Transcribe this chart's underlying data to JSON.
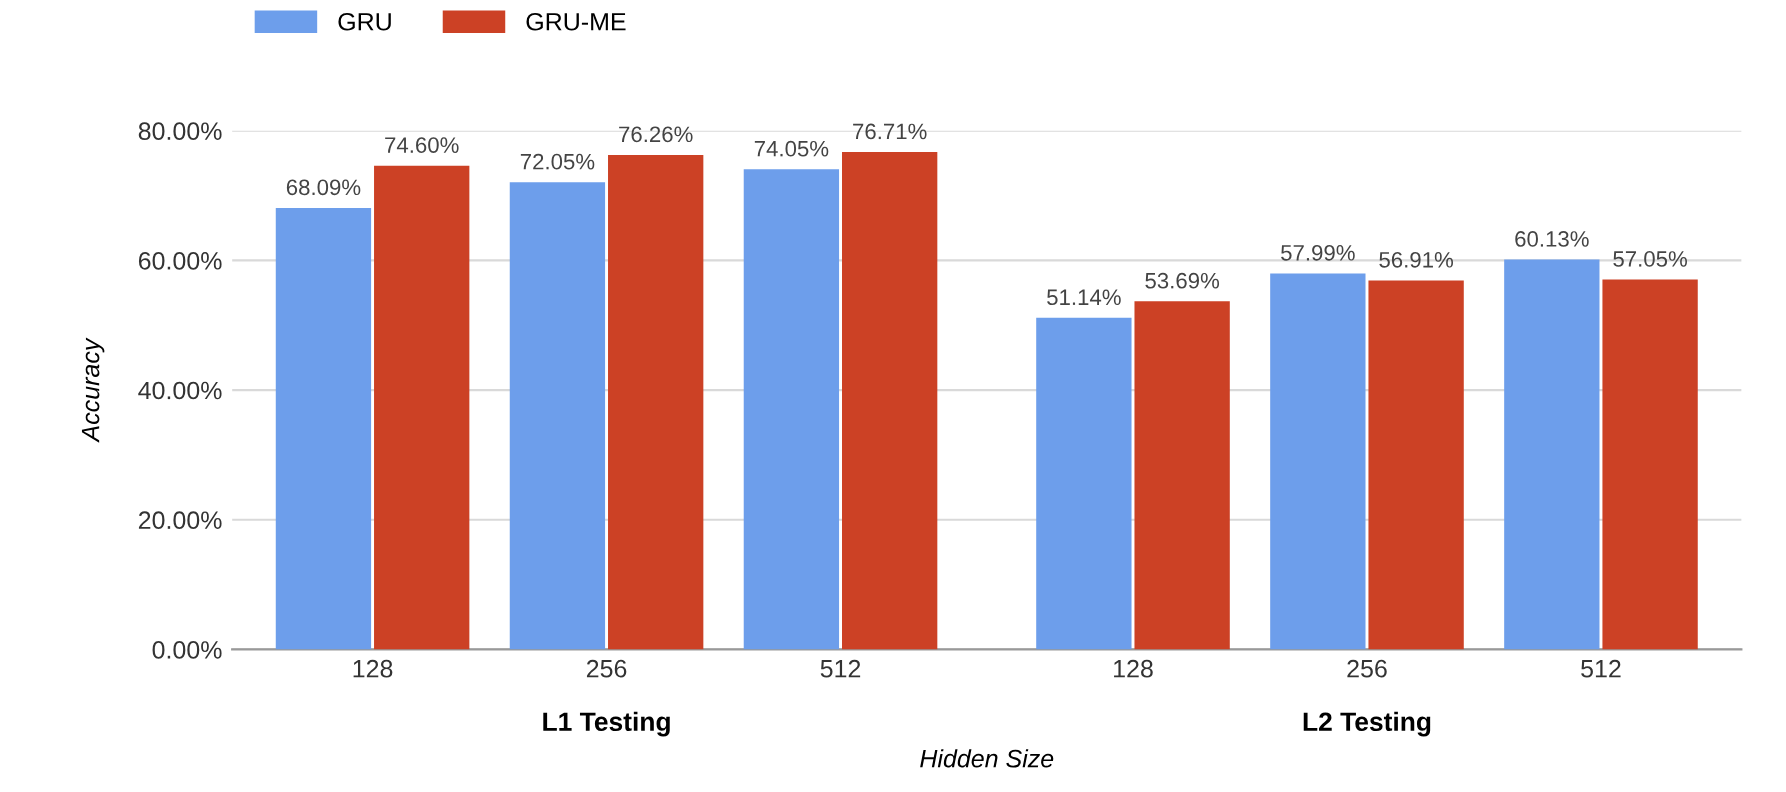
{
  "chart_data": {
    "type": "bar",
    "xlabel": "Hidden Size",
    "ylabel": "Accuracy",
    "categories": [
      "128",
      "256",
      "512",
      "128",
      "256",
      "512"
    ],
    "annotations": [
      "L1 Testing",
      "L2 Testing"
    ],
    "series": [
      {
        "name": "GRU",
        "color": "#6d9eeb",
        "values": [
          68.09,
          72.05,
          74.05,
          51.14,
          57.99,
          60.13
        ],
        "value_labels": [
          "68.09%",
          "72.05%",
          "74.05%",
          "51.14%",
          "57.99%",
          "60.13%"
        ]
      },
      {
        "name": "GRU-ME",
        "color": "#cc4125",
        "values": [
          74.6,
          76.26,
          76.71,
          53.69,
          56.91,
          57.05
        ],
        "value_labels": [
          "74.60%",
          "76.26%",
          "76.71%",
          "53.69%",
          "56.91%",
          "57.05%"
        ]
      }
    ],
    "ylim": [
      0,
      80
    ],
    "yticks": [
      {
        "value": 0,
        "label": "0.00%"
      },
      {
        "value": 20,
        "label": "20.00%"
      },
      {
        "value": 40,
        "label": "40.00%"
      },
      {
        "value": 60,
        "label": "60.00%"
      },
      {
        "value": 80,
        "label": "80.00%"
      }
    ],
    "grid": "y",
    "legend": "top left"
  }
}
